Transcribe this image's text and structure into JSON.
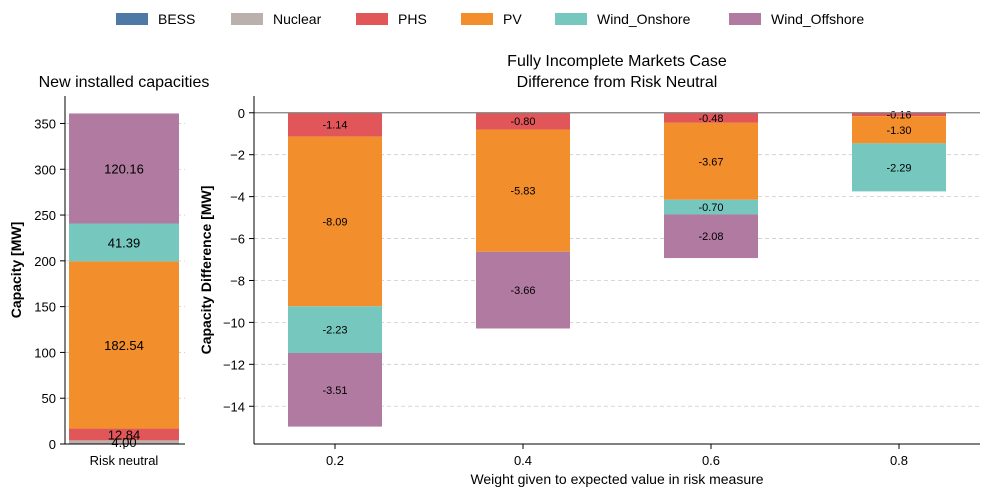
{
  "legend": {
    "placement": "top-center",
    "entries": [
      {
        "name": "BESS",
        "color": "#4e79a7"
      },
      {
        "name": "Nuclear",
        "color": "#bab0ac"
      },
      {
        "name": "PHS",
        "color": "#e15759"
      },
      {
        "name": "PV",
        "color": "#f28e2b"
      },
      {
        "name": "Wind_Onshore",
        "color": "#76c7be"
      },
      {
        "name": "Wind_Offshore",
        "color": "#b07aa1"
      }
    ]
  },
  "chart_data": [
    {
      "type": "bar",
      "stacked": true,
      "title": "New installed capacities",
      "xlabel": "",
      "ylabel": "Capacity [MW]",
      "categories": [
        "Risk neutral"
      ],
      "ylim": [
        0,
        380
      ],
      "yticks": [
        0,
        50,
        100,
        150,
        200,
        250,
        300,
        350
      ],
      "series": [
        {
          "name": "Nuclear",
          "values": [
            4.0
          ],
          "labels": [
            "4.00"
          ]
        },
        {
          "name": "PHS",
          "values": [
            12.84
          ],
          "labels": [
            "12.84"
          ]
        },
        {
          "name": "PV",
          "values": [
            182.54
          ],
          "labels": [
            "182.54"
          ]
        },
        {
          "name": "Wind_Onshore",
          "values": [
            41.39
          ],
          "labels": [
            "41.39"
          ]
        },
        {
          "name": "Wind_Offshore",
          "values": [
            120.16
          ],
          "labels": [
            "120.16"
          ]
        }
      ]
    },
    {
      "type": "bar",
      "stacked": true,
      "title": "Fully Incomplete Markets Case",
      "subtitle": "Difference from Risk Neutral",
      "xlabel": "Weight given to expected value in risk measure",
      "ylabel": "Capacity Difference [MW]",
      "categories": [
        "0.2",
        "0.4",
        "0.6",
        "0.8"
      ],
      "ylim": [
        -15.8,
        0.8
      ],
      "yticks": [
        0,
        -2,
        -4,
        -6,
        -8,
        -10,
        -12,
        -14
      ],
      "grid": "y-dashed",
      "series": [
        {
          "name": "PHS",
          "values": [
            -1.14,
            -0.8,
            -0.48,
            -0.16
          ],
          "labels": [
            "-1.14",
            "-0.80",
            "-0.48",
            "-0.16"
          ]
        },
        {
          "name": "PV",
          "values": [
            -8.09,
            -5.83,
            -3.67,
            -1.3
          ],
          "labels": [
            "-8.09",
            "-5.83",
            "-3.67",
            "-1.30"
          ]
        },
        {
          "name": "Wind_Onshore",
          "values": [
            -2.23,
            0,
            -0.7,
            -2.29
          ],
          "labels": [
            "-2.23",
            "",
            "-0.70",
            "-2.29"
          ]
        },
        {
          "name": "Wind_Offshore",
          "values": [
            -3.51,
            -3.66,
            -2.08,
            0
          ],
          "labels": [
            "-3.51",
            "-3.66",
            "-2.08",
            ""
          ]
        }
      ]
    }
  ]
}
